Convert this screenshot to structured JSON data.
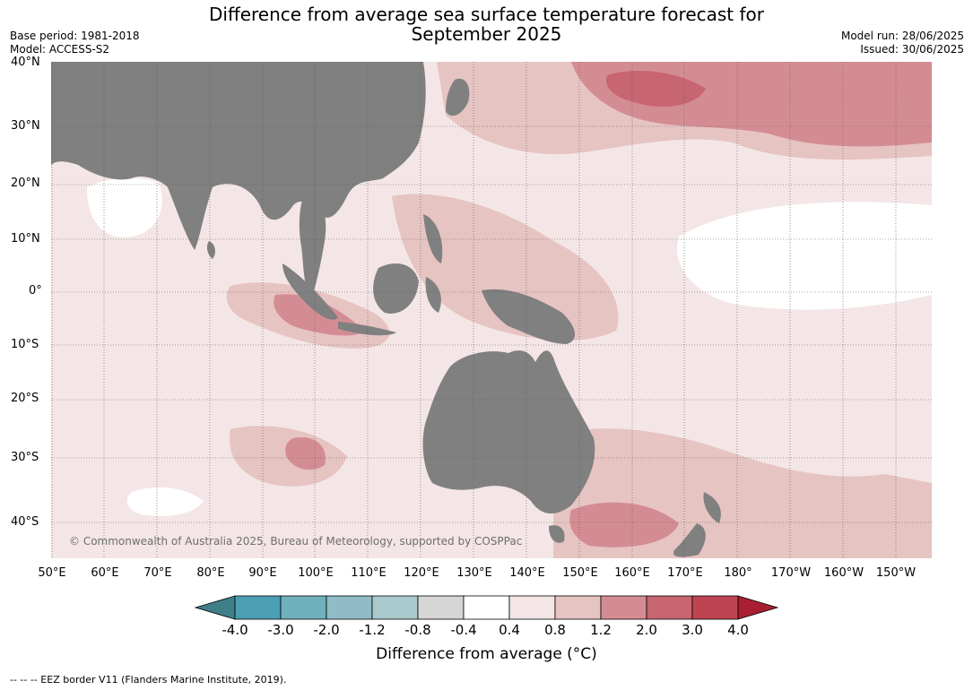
{
  "header": {
    "title_line1": "Difference from average sea surface temperature forecast for",
    "title_line2": "September 2025",
    "base_period": "Base period: 1981-2018",
    "model": "Model: ACCESS-S2",
    "model_run": "Model run: 28/06/2025",
    "issued": "Issued: 30/06/2025"
  },
  "map": {
    "lat_labels": [
      "40°N",
      "30°N",
      "20°N",
      "10°N",
      "0°",
      "10°S",
      "20°S",
      "30°S",
      "40°S"
    ],
    "lon_labels": [
      "50°E",
      "60°E",
      "70°E",
      "80°E",
      "90°E",
      "100°E",
      "110°E",
      "120°E",
      "130°E",
      "140°E",
      "150°E",
      "160°E",
      "170°E",
      "180°",
      "170°W",
      "160°W",
      "150°W"
    ],
    "land_color": "#808080",
    "copyright": "© Commonwealth of Australia 2025, Bureau of Meteorology, supported by COSPPac"
  },
  "colorbar": {
    "tick_labels": [
      "-4.0",
      "-3.0",
      "-2.0",
      "-1.2",
      "-0.8",
      "-0.4",
      "0.4",
      "0.8",
      "1.2",
      "2.0",
      "3.0",
      "4.0"
    ],
    "colors": [
      "#3f7f8a",
      "#4aa0b2",
      "#6fb0bd",
      "#8fbcc7",
      "#a9c9cc",
      "#d6d6d6",
      "#ffffff",
      "#f4e6e6",
      "#e6c4c2",
      "#d48c93",
      "#c76570",
      "#bf4452",
      "#a81f33"
    ],
    "title": "Difference from average (°C)"
  },
  "footer": {
    "eez_note": "--  --  -- EEZ border V11 (Flanders Marine Institute, 2019)."
  }
}
